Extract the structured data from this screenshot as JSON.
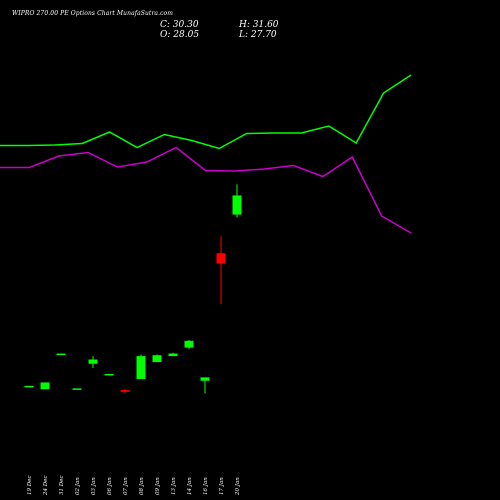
{
  "chart_data": {
    "type": "candlestick",
    "title": "WIPRO 270.00 PE Options Chart MunafaSutra.com",
    "ohlc_readout": {
      "C": "30.30",
      "H": "31.60",
      "O": "28.05",
      "L": "27.70"
    },
    "categories": [
      "19 Dec",
      "24 Dec",
      "31 Dec",
      "02 Jan",
      "03 Jan",
      "06 Jan",
      "07 Jan",
      "08 Jan",
      "09 Jan",
      "13 Jan",
      "14 Jan",
      "16 Jan",
      "17 Jan",
      "20 Jan"
    ],
    "candles": [
      {
        "date": "19 Dec",
        "open": 7.9,
        "high": 7.9,
        "low": 7.9,
        "close": 7.9
      },
      {
        "date": "24 Dec",
        "open": 7.5,
        "high": 8.3,
        "low": 7.5,
        "close": 8.3
      },
      {
        "date": "31 Dec",
        "open": 11.7,
        "high": 11.7,
        "low": 11.7,
        "close": 11.7
      },
      {
        "date": "02 Jan",
        "open": 7.6,
        "high": 7.6,
        "low": 7.6,
        "close": 7.6
      },
      {
        "date": "03 Jan",
        "open": 10.5,
        "high": 11.4,
        "low": 10.0,
        "close": 11.0
      },
      {
        "date": "06 Jan",
        "open": 9.3,
        "high": 9.3,
        "low": 9.3,
        "close": 9.3
      },
      {
        "date": "07 Jan",
        "open": 7.4,
        "high": 7.5,
        "low": 7.0,
        "close": 7.2
      },
      {
        "date": "08 Jan",
        "open": 8.7,
        "high": 11.6,
        "low": 8.7,
        "close": 11.4
      },
      {
        "date": "09 Jan",
        "open": 10.7,
        "high": 11.6,
        "low": 10.7,
        "close": 11.5
      },
      {
        "date": "13 Jan",
        "open": 11.4,
        "high": 11.8,
        "low": 11.4,
        "close": 11.7
      },
      {
        "date": "14 Jan",
        "open": 12.4,
        "high": 13.3,
        "low": 12.2,
        "close": 13.2
      },
      {
        "date": "16 Jan",
        "open": 8.5,
        "high": 8.9,
        "low": 7.0,
        "close": 8.9
      },
      {
        "date": "17 Jan",
        "open": 23.5,
        "high": 25.5,
        "low": 17.5,
        "close": 22.3
      },
      {
        "date": "20 Jan",
        "open": 28.05,
        "high": 31.6,
        "low": 27.7,
        "close": 30.3
      }
    ],
    "overlay_series": [
      {
        "color": "#00ff00",
        "values": [
          145.5,
          145.5,
          145.0,
          143.5,
          132.0,
          147.5,
          134.5,
          140.5,
          148.5,
          133.5,
          133.0,
          133.0,
          126.0,
          143.0,
          93.0,
          75.0
        ]
      },
      {
        "color": "#cc00cc",
        "values": [
          167.5,
          167.5,
          156.0,
          152.5,
          167.0,
          162.0,
          147.5,
          170.5,
          171.0,
          169.0,
          165.5,
          176.5,
          157.0,
          216.0,
          233.0
        ]
      }
    ],
    "colors": {
      "background": "#000000",
      "up": "#00ff00",
      "down": "#ff0000",
      "text": "#ffffff"
    }
  }
}
